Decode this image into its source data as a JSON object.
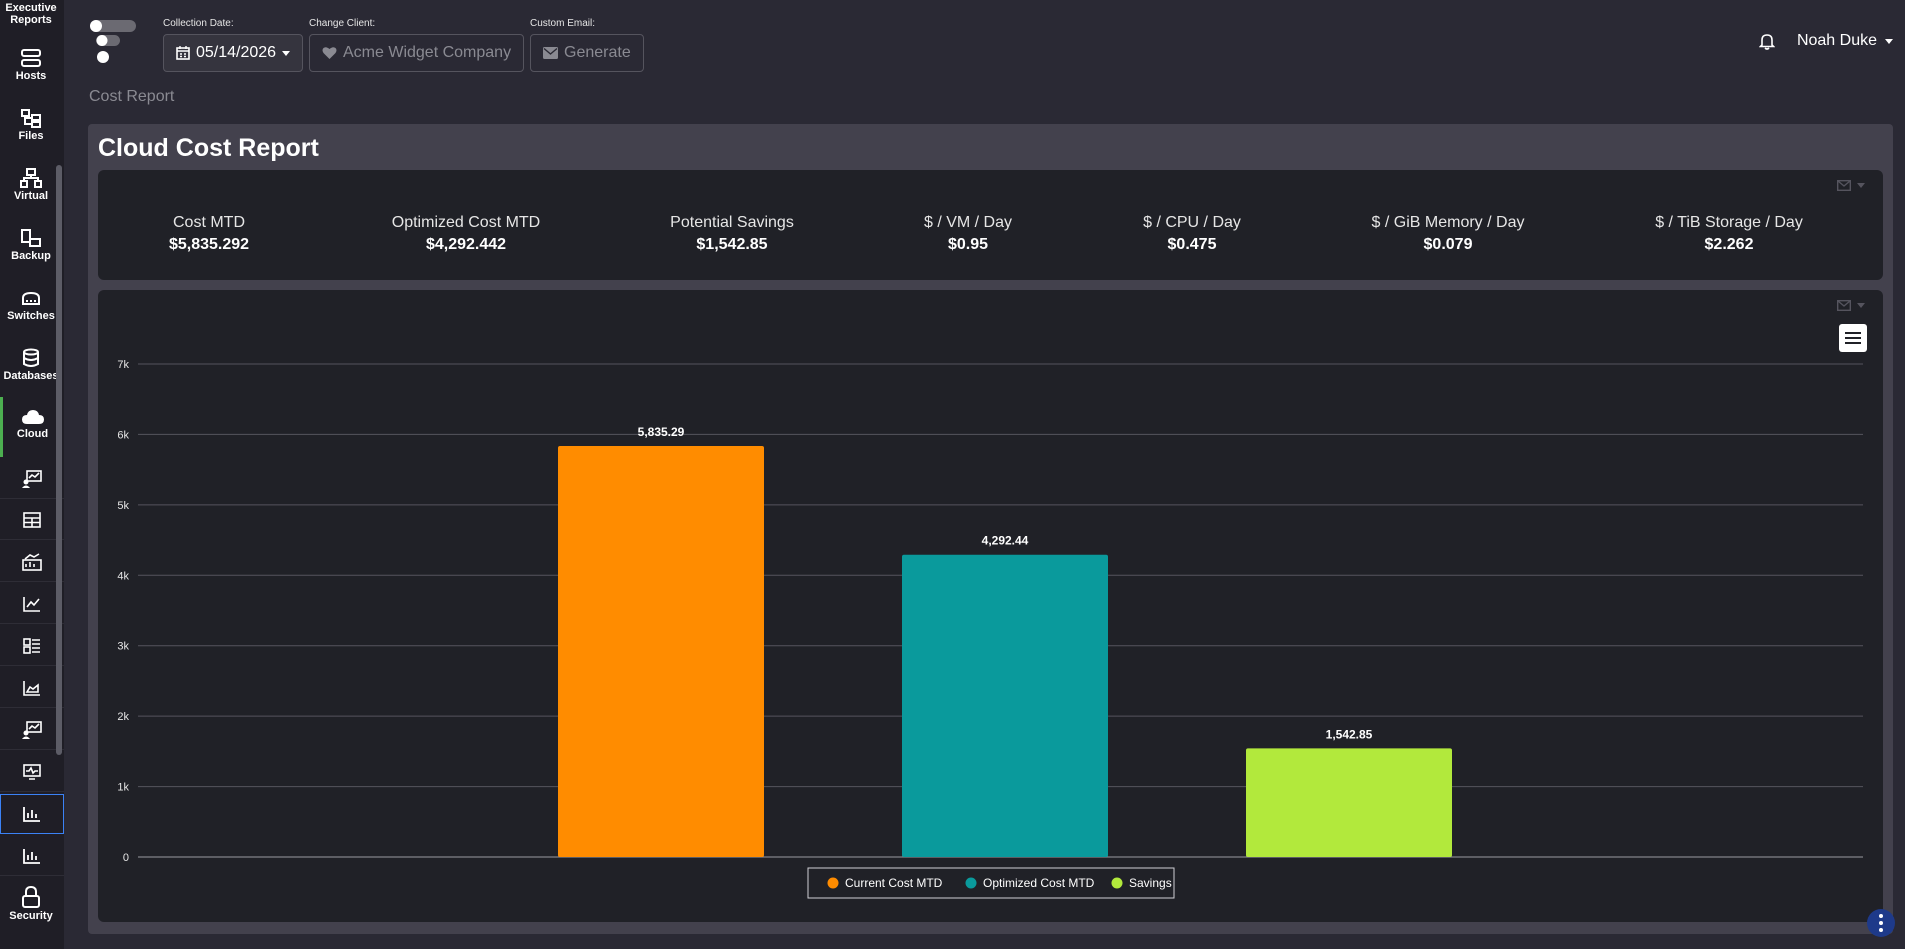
{
  "sidebar": {
    "top_items": [
      {
        "label": "Executive\nReports",
        "icon": "executive-reports-icon"
      },
      {
        "label": "Hosts",
        "icon": "hosts-icon"
      },
      {
        "label": "Files",
        "icon": "files-icon"
      },
      {
        "label": "Virtual",
        "icon": "virtual-icon"
      },
      {
        "label": "Backup",
        "icon": "backup-icon"
      },
      {
        "label": "Switches",
        "icon": "switches-icon"
      },
      {
        "label": "Databases",
        "icon": "databases-icon"
      },
      {
        "label": "Cloud",
        "icon": "cloud-icon",
        "active": true
      }
    ],
    "sub_icons": [
      "report-chart-icon",
      "table-icon",
      "analytics-icon",
      "line-chart-icon",
      "dashboard-icon",
      "area-chart-icon",
      "report-chart-icon",
      "monitor-icon",
      "bar-chart-icon",
      "bar-chart-icon"
    ],
    "bottom_item": {
      "label": "Security",
      "icon": "lock-icon"
    }
  },
  "header": {
    "collection_date_label": "Collection Date:",
    "collection_date_value": "05/14/2026",
    "change_client_label": "Change Client:",
    "change_client_value": "Acme Widget Company",
    "custom_email_label": "Custom Email:",
    "generate_label": "Generate",
    "user_name": "Noah Duke"
  },
  "breadcrumb": "Cost Report",
  "page_title": "Cloud Cost Report",
  "stats": [
    {
      "label": "Cost MTD",
      "value": "$5,835.292"
    },
    {
      "label": "Optimized Cost MTD",
      "value": "$4,292.442"
    },
    {
      "label": "Potential Savings",
      "value": "$1,542.85"
    },
    {
      "label": "$ / VM / Day",
      "value": "$0.95"
    },
    {
      "label": "$ / CPU / Day",
      "value": "$0.475"
    },
    {
      "label": "$ / GiB Memory / Day",
      "value": "$0.079"
    },
    {
      "label": "$ / TiB Storage / Day",
      "value": "$2.262"
    }
  ],
  "chart_data": {
    "type": "bar",
    "series": [
      {
        "name": "Current Cost MTD",
        "value": 5835.29,
        "label": "5,835.29",
        "color": "#ff8c00"
      },
      {
        "name": "Optimized Cost MTD",
        "value": 4292.44,
        "label": "4,292.44",
        "color": "#0a9a9c"
      },
      {
        "name": "Savings",
        "value": 1542.85,
        "label": "1,542.85",
        "color": "#b2e93c"
      }
    ],
    "y_ticks": [
      "0",
      "1k",
      "2k",
      "3k",
      "4k",
      "5k",
      "6k",
      "7k"
    ],
    "ylim": [
      0,
      7000
    ],
    "grid": true,
    "legend_position": "bottom-center"
  },
  "colors": {
    "accent_active": "#4caf50",
    "background": "#2a2934",
    "panel": "#202127"
  }
}
